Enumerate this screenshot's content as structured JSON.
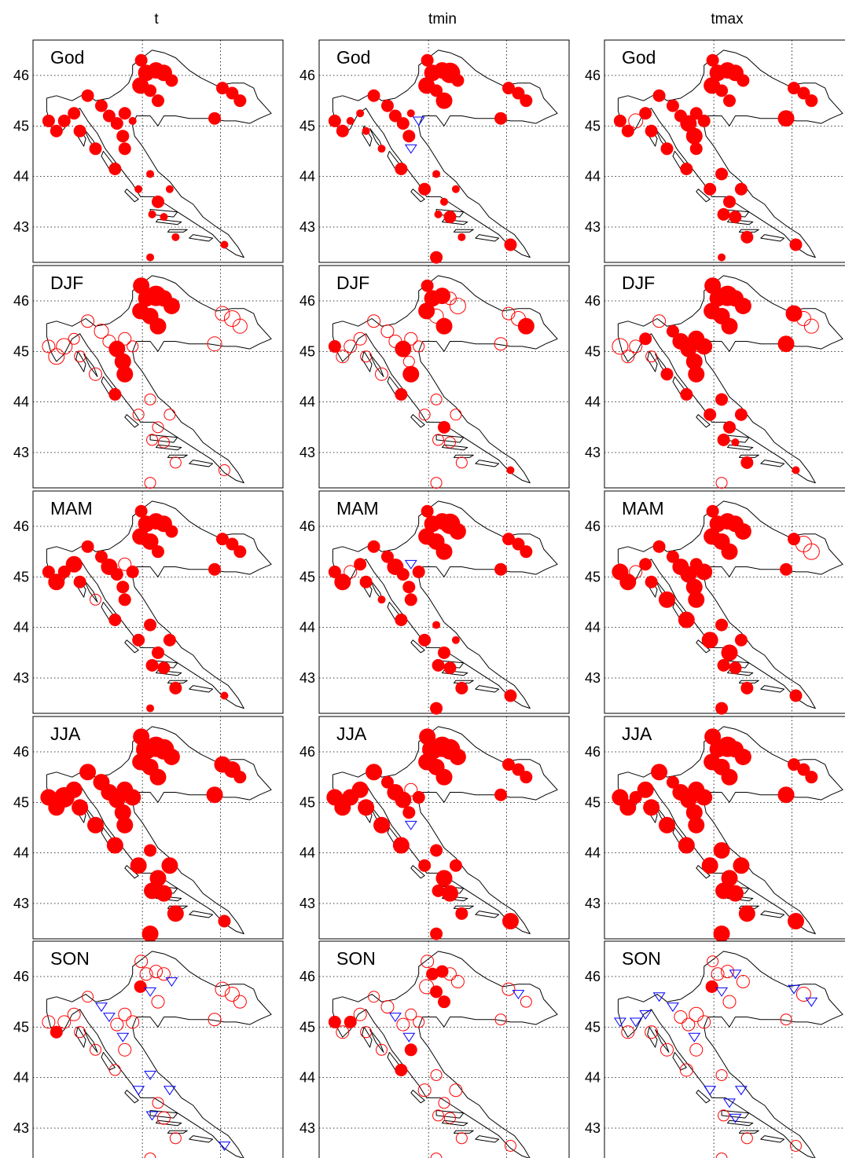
{
  "figure": {
    "columns": [
      "t",
      "tmin",
      "tmax"
    ],
    "rows": [
      "God",
      "DJF",
      "MAM",
      "JJA",
      "SON"
    ],
    "lat_ticks": [
      "46",
      "45",
      "44",
      "43"
    ]
  },
  "colors": {
    "positive": "#ff0000",
    "negative": "#0000ff",
    "frame": "#000000"
  },
  "legend_symbols": {
    "filled_circle": "significant increase",
    "open_circle": "increase",
    "open_triangle": "decrease"
  },
  "stations": [
    [
      15.97,
      46.3
    ],
    [
      16.1,
      46.05
    ],
    [
      16.35,
      46.1
    ],
    [
      16.55,
      46.05
    ],
    [
      16.75,
      45.9
    ],
    [
      15.95,
      45.8
    ],
    [
      16.2,
      45.7
    ],
    [
      16.4,
      45.5
    ],
    [
      18.05,
      45.75
    ],
    [
      18.3,
      45.65
    ],
    [
      18.5,
      45.5
    ],
    [
      17.85,
      45.15
    ],
    [
      14.0,
      45.1
    ],
    [
      13.6,
      45.1
    ],
    [
      13.8,
      44.9
    ],
    [
      14.25,
      45.25
    ],
    [
      14.6,
      45.6
    ],
    [
      14.95,
      45.4
    ],
    [
      15.15,
      45.2
    ],
    [
      15.35,
      45.05
    ],
    [
      15.55,
      45.25
    ],
    [
      15.75,
      45.1
    ],
    [
      15.5,
      44.8
    ],
    [
      15.55,
      44.55
    ],
    [
      14.8,
      44.55
    ],
    [
      15.3,
      44.15
    ],
    [
      15.9,
      43.75
    ],
    [
      16.2,
      44.05
    ],
    [
      16.7,
      43.75
    ],
    [
      16.4,
      43.5
    ],
    [
      16.25,
      43.25
    ],
    [
      16.55,
      43.2
    ],
    [
      16.85,
      42.8
    ],
    [
      18.1,
      42.65
    ],
    [
      16.2,
      42.4
    ],
    [
      14.4,
      44.9
    ]
  ],
  "panels": [
    {
      "column": "t",
      "row": "God",
      "values": [
        2,
        3,
        3,
        3,
        2,
        3,
        2,
        2,
        2,
        2,
        2,
        2,
        2,
        2,
        2,
        2,
        2,
        2,
        2,
        2,
        2,
        1,
        2,
        2,
        2,
        2,
        1,
        1,
        1,
        2,
        1,
        1,
        1,
        1,
        1,
        2
      ]
    },
    {
      "column": "tmin",
      "row": "God",
      "values": [
        2,
        3,
        3,
        4,
        2,
        3,
        2,
        3,
        2,
        2,
        2,
        2,
        1,
        2,
        2,
        1,
        2,
        2,
        2,
        2,
        1,
        -1,
        2,
        -1,
        1,
        2,
        2,
        1,
        1,
        1,
        1,
        2,
        1,
        2,
        2,
        1
      ]
    },
    {
      "column": "tmax",
      "row": "God",
      "values": [
        2,
        3,
        3,
        3,
        2,
        3,
        2,
        2,
        2,
        2,
        2,
        3,
        0.5,
        2,
        2,
        2,
        2,
        2,
        2,
        3,
        2,
        2,
        3,
        2,
        2,
        2,
        2,
        2,
        2,
        2,
        2,
        2,
        2,
        2,
        1,
        2
      ]
    },
    {
      "column": "t",
      "row": "DJF",
      "values": [
        3,
        3,
        4,
        3,
        3,
        3,
        3,
        3,
        0.5,
        0.6,
        0.5,
        0.5,
        0.6,
        0.4,
        0.6,
        0.3,
        0.4,
        0.5,
        0.4,
        3,
        0.4,
        0.3,
        3,
        3,
        0.4,
        2,
        0.3,
        0.3,
        0.3,
        0.3,
        0.3,
        0.3,
        0.3,
        0.3,
        0.3,
        0.3
      ]
    },
    {
      "column": "tmin",
      "row": "DJF",
      "values": [
        2,
        3,
        3,
        0.4,
        0.6,
        3,
        0.5,
        3,
        0.4,
        0.5,
        3,
        0.4,
        0.4,
        2,
        0.4,
        0.4,
        0.4,
        0.4,
        0.4,
        3,
        0.4,
        0.3,
        0.3,
        3,
        0.4,
        2,
        0.3,
        0.3,
        0.3,
        2,
        0.3,
        0.3,
        0.3,
        1,
        0.3,
        0.3
      ]
    },
    {
      "column": "tmax",
      "row": "DJF",
      "values": [
        3,
        3,
        4,
        3,
        3,
        3,
        3,
        3,
        3,
        0.5,
        0.5,
        3,
        0.4,
        0.6,
        0.4,
        2,
        0.4,
        2,
        3,
        3,
        3,
        3,
        3,
        3,
        2,
        2,
        2,
        2,
        2,
        2,
        2,
        1,
        2,
        1,
        0.3,
        0.3
      ]
    },
    {
      "column": "t",
      "row": "MAM",
      "values": [
        2,
        3,
        3,
        3,
        2,
        3,
        3,
        2,
        2,
        2,
        2,
        2,
        2,
        2,
        3,
        3,
        2,
        2,
        3,
        2,
        0.4,
        2,
        2,
        2,
        0.3,
        2,
        2,
        2,
        2,
        2,
        2,
        2,
        2,
        1,
        1,
        2
      ]
    },
    {
      "column": "tmin",
      "row": "MAM",
      "values": [
        2,
        3,
        3,
        4,
        3,
        3,
        3,
        3,
        2,
        2,
        2,
        2,
        0.4,
        2,
        3,
        2,
        2,
        2,
        3,
        2,
        -1,
        2,
        2,
        2,
        1,
        2,
        2,
        1,
        1,
        2,
        2,
        2,
        2,
        2,
        2,
        2
      ]
    },
    {
      "column": "tmax",
      "row": "MAM",
      "values": [
        2,
        3,
        3,
        3,
        3,
        3,
        3,
        3,
        2,
        0.6,
        0.6,
        2,
        0.4,
        3,
        3,
        2,
        2,
        2,
        3,
        3,
        2,
        3,
        3,
        3,
        3,
        3,
        3,
        2,
        2,
        3,
        2,
        2,
        2,
        2,
        2,
        2
      ]
    },
    {
      "column": "t",
      "row": "JJA",
      "values": [
        3,
        4,
        4,
        4,
        3,
        3,
        3,
        3,
        3,
        3,
        2,
        3,
        4,
        3,
        3,
        3,
        3,
        3,
        3,
        3,
        3,
        3,
        3,
        3,
        3,
        3,
        3,
        2,
        3,
        3,
        3,
        3,
        3,
        2,
        3,
        3
      ]
    },
    {
      "column": "tmin",
      "row": "JJA",
      "values": [
        3,
        4,
        4,
        4,
        3,
        3,
        3,
        3,
        2,
        2,
        2,
        2,
        3,
        3,
        3,
        3,
        3,
        2,
        3,
        3,
        0.4,
        2,
        2,
        -1,
        3,
        3,
        2,
        2,
        2,
        3,
        2,
        3,
        2,
        3,
        2,
        3
      ]
    },
    {
      "column": "tmax",
      "row": "JJA",
      "values": [
        3,
        3,
        4,
        3,
        3,
        3,
        3,
        3,
        2,
        2,
        2,
        3,
        2,
        3,
        3,
        3,
        3,
        2,
        3,
        3,
        3,
        3,
        3,
        3,
        3,
        3,
        3,
        3,
        3,
        3,
        3,
        3,
        3,
        3,
        3,
        3
      ]
    },
    {
      "column": "t",
      "row": "SON",
      "values": [
        0.4,
        0.4,
        0.4,
        0.4,
        -1,
        2,
        -1,
        0.4,
        0.5,
        0.5,
        0.4,
        0.4,
        0.4,
        0.4,
        2,
        0.4,
        0.3,
        -1,
        -1,
        0.4,
        0.4,
        0.4,
        -1,
        0.4,
        0.3,
        0.3,
        -1,
        -1,
        -1,
        0.3,
        -1,
        0.4,
        0.3,
        -1,
        0.3,
        0.3
      ]
    },
    {
      "column": "tmin",
      "row": "SON",
      "values": [
        0.4,
        2,
        2,
        0.4,
        0.4,
        0.5,
        2,
        2,
        0.4,
        -1,
        0.3,
        0.3,
        2,
        2,
        0.4,
        0.4,
        0.3,
        0.4,
        -1,
        0.4,
        0.3,
        0.3,
        -1,
        2,
        0.3,
        2,
        0.4,
        0.3,
        0.4,
        0.3,
        0.3,
        0.3,
        0.3,
        0.3,
        0.3,
        0.3
      ]
    },
    {
      "column": "tmax",
      "row": "SON",
      "values": [
        0.3,
        0.4,
        0.4,
        -1,
        0.4,
        2,
        -1,
        0.4,
        -1,
        0.5,
        -1,
        0.3,
        -1,
        -1,
        0.4,
        -1,
        -1,
        -1,
        0.4,
        0.4,
        0.5,
        0.4,
        -1,
        0.4,
        0.4,
        0.4,
        -1,
        0.3,
        -1,
        -1,
        0.3,
        -1,
        0.3,
        0.3,
        0.3,
        0.4
      ]
    }
  ]
}
